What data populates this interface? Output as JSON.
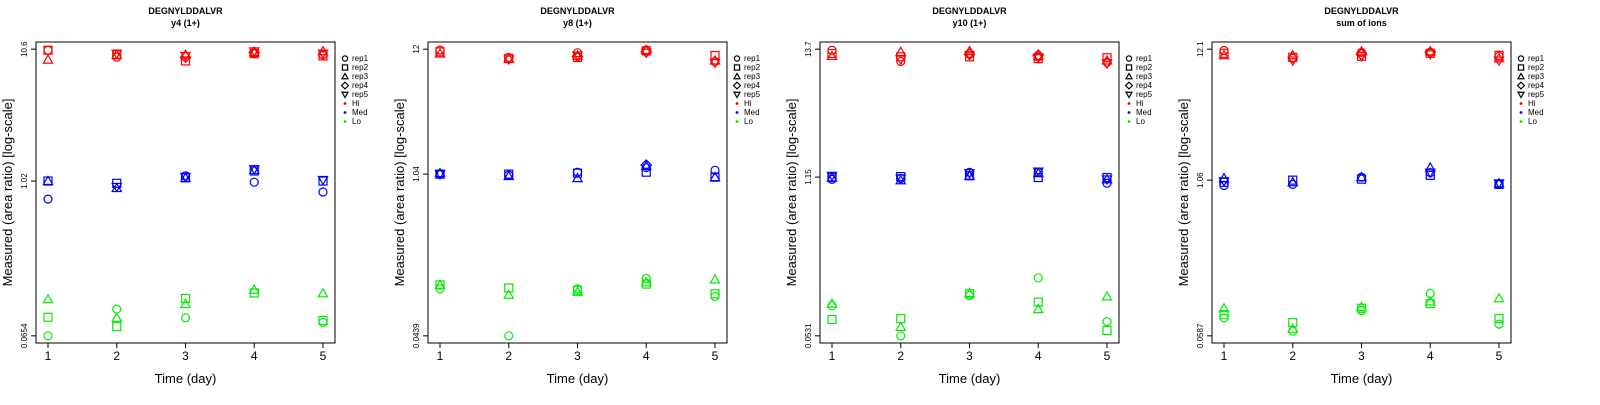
{
  "colors": {
    "Hi": "#ff0000",
    "Med": "#0000ff",
    "Lo": "#00ee00",
    "axis": "#000000"
  },
  "legend": {
    "reps": [
      {
        "label": "rep1",
        "shape": "circle"
      },
      {
        "label": "rep2",
        "shape": "square"
      },
      {
        "label": "rep3",
        "shape": "triangle-up"
      },
      {
        "label": "rep4",
        "shape": "diamond"
      },
      {
        "label": "rep5",
        "shape": "triangle-down"
      }
    ],
    "levels": [
      {
        "label": "Hi",
        "color": "#ff0000"
      },
      {
        "label": "Med",
        "color": "#0000ff"
      },
      {
        "label": "Lo",
        "color": "#00ee00"
      }
    ]
  },
  "chart_data": [
    {
      "type": "scatter",
      "title": "DEGNYLDDALVR",
      "subtitle": "y4 (1+)",
      "xlabel": "Time (day)",
      "ylabel": "Measured (area ratio) [log-scale]",
      "log_scale_y": true,
      "ylim": [
        0.0654,
        10.6
      ],
      "yticks": [
        "0.0654",
        "1.02",
        "10.6"
      ],
      "xticks": [
        "1",
        "2",
        "3",
        "4",
        "5"
      ],
      "grid": false,
      "legend_position": "right",
      "series": [
        {
          "level": "Hi",
          "rep": "rep1",
          "values": [
            10.4,
            9.2,
            null,
            9.8,
            9.6
          ]
        },
        {
          "level": "Hi",
          "rep": "rep2",
          "values": [
            10.4,
            9.6,
            8.6,
            9.8,
            9.4
          ]
        },
        {
          "level": "Hi",
          "rep": "rep3",
          "values": [
            8.8,
            9.6,
            9.6,
            10.0,
            10.2
          ]
        },
        {
          "level": "Hi",
          "rep": "rep4",
          "values": [
            null,
            null,
            9.2,
            10.0,
            null
          ]
        },
        {
          "level": "Hi",
          "rep": "rep5",
          "values": [
            null,
            9.8,
            9.4,
            10.2,
            9.8
          ]
        },
        {
          "level": "Med",
          "rep": "rep1",
          "values": [
            0.74,
            null,
            1.12,
            1.0,
            0.84
          ]
        },
        {
          "level": "Med",
          "rep": "rep2",
          "values": [
            1.02,
            0.98,
            1.08,
            1.22,
            1.02
          ]
        },
        {
          "level": "Med",
          "rep": "rep3",
          "values": [
            1.02,
            0.9,
            1.08,
            1.24,
            null
          ]
        },
        {
          "level": "Med",
          "rep": "rep4",
          "values": [
            null,
            null,
            null,
            null,
            null
          ]
        },
        {
          "level": "Med",
          "rep": "rep5",
          "values": [
            null,
            0.92,
            1.1,
            1.26,
            1.04
          ]
        },
        {
          "level": "Lo",
          "rep": "rep1",
          "values": [
            0.0654,
            0.105,
            0.09,
            null,
            0.083
          ]
        },
        {
          "level": "Lo",
          "rep": "rep2",
          "values": [
            0.091,
            0.077,
            0.127,
            0.14,
            0.086
          ]
        },
        {
          "level": "Lo",
          "rep": "rep3",
          "values": [
            0.125,
            0.09,
            0.115,
            0.148,
            0.139
          ]
        },
        {
          "level": "Lo",
          "rep": "rep4",
          "values": [
            null,
            null,
            null,
            null,
            null
          ]
        },
        {
          "level": "Lo",
          "rep": "rep5",
          "values": [
            null,
            null,
            null,
            null,
            null
          ]
        }
      ]
    },
    {
      "type": "scatter",
      "title": "DEGNYLDDALVR",
      "subtitle": "y8 (1+)",
      "xlabel": "Time (day)",
      "ylabel": "Measured (area ratio) [log-scale]",
      "log_scale_y": true,
      "ylim": [
        0.0439,
        12
      ],
      "yticks": [
        "0.0439",
        "1.04",
        "12"
      ],
      "xticks": [
        "1",
        "2",
        "3",
        "4",
        "5"
      ],
      "grid": false,
      "legend_position": "right",
      "series": [
        {
          "level": "Hi",
          "rep": "rep1",
          "values": [
            11.8,
            10.2,
            11.2,
            11.8,
            9.4
          ]
        },
        {
          "level": "Hi",
          "rep": "rep2",
          "values": [
            11.4,
            10.0,
            10.2,
            11.6,
            10.6
          ]
        },
        {
          "level": "Hi",
          "rep": "rep3",
          "values": [
            11.0,
            10.0,
            10.6,
            11.8,
            9.6
          ]
        },
        {
          "level": "Hi",
          "rep": "rep4",
          "values": [
            null,
            null,
            10.4,
            11.4,
            null
          ]
        },
        {
          "level": "Hi",
          "rep": "rep5",
          "values": [
            null,
            9.8,
            10.6,
            11.2,
            9.2
          ]
        },
        {
          "level": "Med",
          "rep": "rep1",
          "values": [
            1.04,
            1.02,
            1.08,
            1.18,
            1.12
          ]
        },
        {
          "level": "Med",
          "rep": "rep2",
          "values": [
            1.04,
            1.04,
            1.06,
            1.08,
            0.98
          ]
        },
        {
          "level": "Med",
          "rep": "rep3",
          "values": [
            1.06,
            1.0,
            0.96,
            1.22,
            0.98
          ]
        },
        {
          "level": "Med",
          "rep": "rep4",
          "values": [
            null,
            null,
            null,
            1.24,
            null
          ]
        },
        {
          "level": "Med",
          "rep": "rep5",
          "values": [
            1.04,
            null,
            null,
            null,
            null
          ]
        },
        {
          "level": "Lo",
          "rep": "rep1",
          "values": [
            0.11,
            0.0439,
            0.11,
            0.135,
            0.095
          ]
        },
        {
          "level": "Lo",
          "rep": "rep2",
          "values": [
            0.119,
            0.112,
            0.107,
            0.121,
            0.1
          ]
        },
        {
          "level": "Lo",
          "rep": "rep3",
          "values": [
            0.119,
            0.098,
            0.104,
            0.125,
            0.132
          ]
        },
        {
          "level": "Lo",
          "rep": "rep4",
          "values": [
            null,
            null,
            null,
            null,
            null
          ]
        },
        {
          "level": "Lo",
          "rep": "rep5",
          "values": [
            null,
            null,
            null,
            null,
            null
          ]
        }
      ]
    },
    {
      "type": "scatter",
      "title": "DEGNYLDDALVR",
      "subtitle": "y10 (1+)",
      "xlabel": "Time (day)",
      "ylabel": "Measured (area ratio) [log-scale]",
      "log_scale_y": true,
      "ylim": [
        0.0531,
        13.7
      ],
      "yticks": [
        "0.0531",
        "1.15",
        "13.7"
      ],
      "xticks": [
        "1",
        "2",
        "3",
        "4",
        "5"
      ],
      "grid": false,
      "legend_position": "right",
      "series": [
        {
          "level": "Hi",
          "rep": "rep1",
          "values": [
            13.4,
            10.8,
            12.6,
            11.8,
            10.6
          ]
        },
        {
          "level": "Hi",
          "rep": "rep2",
          "values": [
            12.6,
            11.8,
            11.8,
            11.4,
            11.6
          ]
        },
        {
          "level": "Hi",
          "rep": "rep3",
          "values": [
            12.0,
            13.0,
            13.2,
            12.0,
            11.0
          ]
        },
        {
          "level": "Hi",
          "rep": "rep4",
          "values": [
            null,
            null,
            12.4,
            12.2,
            null
          ]
        },
        {
          "level": "Hi",
          "rep": "rep5",
          "values": [
            null,
            11.2,
            12.2,
            11.6,
            10.4
          ]
        },
        {
          "level": "Med",
          "rep": "rep1",
          "values": [
            1.1,
            1.12,
            1.26,
            1.26,
            1.02
          ]
        },
        {
          "level": "Med",
          "rep": "rep2",
          "values": [
            1.14,
            1.16,
            1.18,
            1.14,
            1.14
          ]
        },
        {
          "level": "Med",
          "rep": "rep3",
          "values": [
            1.14,
            1.08,
            1.18,
            1.24,
            1.1
          ]
        },
        {
          "level": "Med",
          "rep": "rep4",
          "values": [
            null,
            null,
            null,
            null,
            null
          ]
        },
        {
          "level": "Med",
          "rep": "rep5",
          "values": [
            1.18,
            1.12,
            1.24,
            1.28,
            1.1
          ]
        },
        {
          "level": "Lo",
          "rep": "rep1",
          "values": [
            0.095,
            0.0531,
            0.116,
            0.163,
            0.07
          ]
        },
        {
          "level": "Lo",
          "rep": "rep2",
          "values": [
            0.073,
            0.074,
            0.12,
            0.102,
            0.059
          ]
        },
        {
          "level": "Lo",
          "rep": "rep3",
          "values": [
            0.099,
            0.063,
            0.122,
            0.089,
            0.114
          ]
        },
        {
          "level": "Lo",
          "rep": "rep4",
          "values": [
            null,
            null,
            null,
            null,
            null
          ]
        },
        {
          "level": "Lo",
          "rep": "rep5",
          "values": [
            null,
            null,
            null,
            null,
            null
          ]
        }
      ]
    },
    {
      "type": "scatter",
      "title": "DEGNYLDDALVR",
      "subtitle": "sum of ions",
      "xlabel": "Time (day)",
      "ylabel": "Measured (area ratio) [log-scale]",
      "log_scale_y": true,
      "ylim": [
        0.0587,
        12.1
      ],
      "yticks": [
        "0.0587",
        "1.06",
        "12.1"
      ],
      "xticks": [
        "1",
        "2",
        "3",
        "4",
        "5"
      ],
      "grid": false,
      "legend_position": "right",
      "series": [
        {
          "level": "Hi",
          "rep": "rep1",
          "values": [
            11.8,
            10.2,
            11.4,
            11.4,
            10.6
          ]
        },
        {
          "level": "Hi",
          "rep": "rep2",
          "values": [
            11.2,
            10.4,
            10.6,
            11.2,
            10.8
          ]
        },
        {
          "level": "Hi",
          "rep": "rep3",
          "values": [
            10.8,
            10.8,
            11.6,
            11.6,
            10.2
          ]
        },
        {
          "level": "Hi",
          "rep": "rep4",
          "values": [
            null,
            null,
            11.0,
            11.4,
            null
          ]
        },
        {
          "level": "Hi",
          "rep": "rep5",
          "values": [
            null,
            9.8,
            10.6,
            11.0,
            9.8
          ]
        },
        {
          "level": "Med",
          "rep": "rep1",
          "values": [
            0.96,
            0.98,
            1.12,
            1.22,
            0.98
          ]
        },
        {
          "level": "Med",
          "rep": "rep2",
          "values": [
            1.02,
            1.06,
            1.08,
            1.16,
            0.98
          ]
        },
        {
          "level": "Med",
          "rep": "rep3",
          "values": [
            1.1,
            1.02,
            1.12,
            1.34,
            1.0
          ]
        },
        {
          "level": "Med",
          "rep": "rep4",
          "values": [
            null,
            null,
            null,
            null,
            null
          ]
        },
        {
          "level": "Med",
          "rep": "rep5",
          "values": [
            1.04,
            null,
            null,
            1.22,
            1.0
          ]
        },
        {
          "level": "Lo",
          "rep": "rep1",
          "values": [
            0.082,
            0.064,
            0.094,
            0.129,
            0.073
          ]
        },
        {
          "level": "Lo",
          "rep": "rep2",
          "values": [
            0.087,
            0.075,
            0.098,
            0.107,
            0.081
          ]
        },
        {
          "level": "Lo",
          "rep": "rep3",
          "values": [
            0.098,
            0.067,
            0.1,
            0.111,
            0.118
          ]
        },
        {
          "level": "Lo",
          "rep": "rep4",
          "values": [
            null,
            null,
            null,
            null,
            null
          ]
        },
        {
          "level": "Lo",
          "rep": "rep5",
          "values": [
            null,
            null,
            null,
            null,
            null
          ]
        }
      ]
    }
  ]
}
